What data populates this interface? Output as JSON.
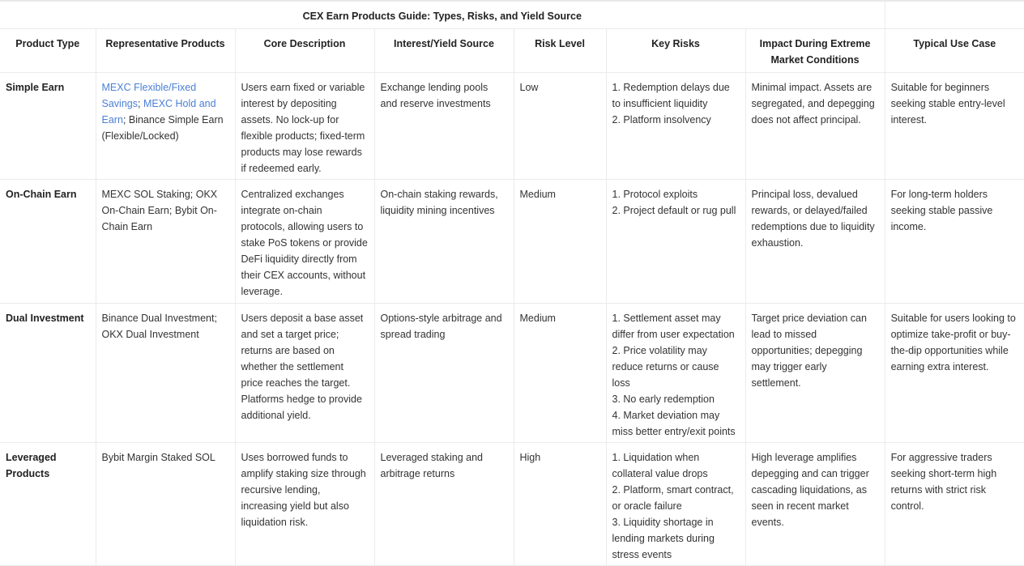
{
  "table": {
    "title": "CEX Earn Products Guide: Types, Risks, and Yield Source",
    "columns": [
      "Product Type",
      "Representative Products",
      "Core Description",
      "Interest/Yield Source",
      "Risk Level",
      "Key Risks",
      "Impact During Extreme Market Conditions",
      "Typical Use Case"
    ],
    "link_color": "#4a7fd6",
    "rows": [
      {
        "product_type": "Simple Earn",
        "representative_products": [
          {
            "text": "MEXC Flexible/Fixed Savings",
            "link": true
          },
          {
            "text": "; ",
            "link": false
          },
          {
            "text": "MEXC Hold and Earn",
            "link": true
          },
          {
            "text": "; Binance Simple Earn (Flexible/Locked)",
            "link": false
          }
        ],
        "core_description": "Users earn fixed or variable interest by depositing assets. No lock-up for flexible products; fixed-term products may lose rewards if redeemed early.",
        "yield_source": "Exchange lending pools and reserve investments",
        "risk_level": "Low",
        "key_risks": [
          "1. Redemption delays due to insufficient liquidity",
          "2. Platform insolvency"
        ],
        "extreme_impact": "Minimal impact. Assets are segregated, and depegging does not affect principal.",
        "use_case": "Suitable for beginners seeking stable entry-level interest."
      },
      {
        "product_type": "On-Chain Earn",
        "representative_products": [
          {
            "text": "MEXC SOL Staking; OKX On-Chain Earn; Bybit On-Chain Earn",
            "link": false
          }
        ],
        "core_description": "Centralized exchanges integrate on-chain protocols, allowing users to stake PoS tokens or provide DeFi liquidity directly from their CEX accounts, without leverage.",
        "yield_source": "On-chain staking rewards, liquidity mining incentives",
        "risk_level": "Medium",
        "key_risks": [
          "1. Protocol exploits",
          "2. Project default or rug pull"
        ],
        "extreme_impact": "Principal loss, devalued rewards, or delayed/failed redemptions due to liquidity exhaustion.",
        "use_case": "For long-term holders seeking stable passive income."
      },
      {
        "product_type": "Dual Investment",
        "representative_products": [
          {
            "text": "Binance Dual Investment; OKX Dual Investment",
            "link": false
          }
        ],
        "core_description": "Users deposit a base asset and set a target price; returns are based on whether the settlement price reaches the target. Platforms hedge to provide additional yield.",
        "yield_source": "Options-style arbitrage and spread trading",
        "risk_level": "Medium",
        "key_risks": [
          "1. Settlement asset may differ from user expectation",
          "2. Price volatility may reduce returns or cause loss",
          "3. No early redemption",
          "4. Market deviation may miss better entry/exit points"
        ],
        "extreme_impact": "Target price deviation can lead to missed opportunities; depegging may trigger early settlement.",
        "use_case": "Suitable for users looking to optimize take-profit or buy-the-dip opportunities while earning extra interest."
      },
      {
        "product_type": "Leveraged Products",
        "representative_products": [
          {
            "text": "Bybit Margin Staked SOL",
            "link": false
          }
        ],
        "core_description": "Uses borrowed funds to amplify staking size through recursive lending, increasing yield but also liquidation risk.",
        "yield_source": "Leveraged staking and arbitrage returns",
        "risk_level": "High",
        "key_risks": [
          "1. Liquidation when collateral value drops",
          "2. Platform, smart contract, or oracle failure",
          "3. Liquidity shortage in lending markets during stress events"
        ],
        "extreme_impact": "High leverage amplifies depegging and can trigger cascading liquidations, as seen in recent market events.",
        "use_case": "For aggressive traders seeking short-term high returns with strict risk control."
      }
    ]
  }
}
